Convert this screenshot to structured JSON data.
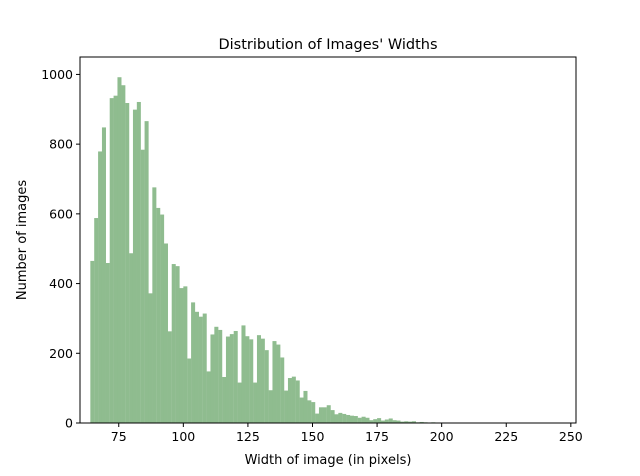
{
  "chart_data": {
    "type": "bar",
    "title": "Distribution of Images' Widths",
    "xlabel": "Width of image (in pixels)",
    "ylabel": "Number of images",
    "xlim": [
      60,
      252
    ],
    "ylim": [
      0,
      1050
    ],
    "xticks": [
      75,
      100,
      125,
      150,
      175,
      200,
      225,
      250
    ],
    "yticks": [
      0,
      200,
      400,
      600,
      800,
      1000
    ],
    "bar_color": "#8fbc8f",
    "grid": false,
    "bins": [
      64,
      65.5,
      67,
      68.5,
      70,
      71.5,
      73,
      74.5,
      76,
      77.5,
      79,
      80.5,
      82,
      83.5,
      85,
      86.5,
      88,
      89.5,
      91,
      92.5,
      94,
      95.5,
      97,
      98.5,
      100,
      101.5,
      103,
      104.5,
      106,
      107.5,
      109,
      110.5,
      112,
      113.5,
      115,
      116.5,
      118,
      119.5,
      121,
      122.5,
      124,
      125.5,
      127,
      128.5,
      130,
      131.5,
      133,
      134.5,
      136,
      137.5,
      139,
      140.5,
      142,
      143.5,
      145,
      146.5,
      148,
      149.5,
      151,
      152.5,
      154,
      155.5,
      157,
      158.5,
      160,
      161.5,
      163,
      164.5,
      166,
      167.5,
      169,
      170.5,
      172,
      173.5,
      175,
      176.5,
      178,
      179.5,
      181,
      182.5,
      184,
      185.5,
      187,
      188.5,
      190,
      191.5,
      193,
      194.5,
      196,
      197.5,
      199,
      200.5,
      202,
      203.5,
      205,
      206.5,
      208,
      209.5,
      211,
      212.5,
      214,
      215.5,
      217,
      218.5,
      220,
      221.5,
      223,
      224.5,
      226,
      227.5,
      229,
      230.5,
      232,
      233.5,
      235,
      236.5,
      238,
      239.5,
      241,
      242.5,
      244,
      245.5
    ],
    "values": [
      465,
      588,
      779,
      848,
      459,
      932,
      939,
      992,
      969,
      918,
      487,
      899,
      921,
      784,
      866,
      372,
      676,
      617,
      598,
      515,
      263,
      456,
      450,
      387,
      392,
      185,
      346,
      319,
      305,
      314,
      148,
      254,
      276,
      267,
      132,
      248,
      255,
      264,
      116,
      280,
      249,
      240,
      116,
      252,
      242,
      209,
      94,
      235,
      225,
      188,
      93,
      129,
      133,
      122,
      73,
      92,
      65,
      60,
      27,
      45,
      45,
      51,
      37,
      25,
      29,
      26,
      23,
      21,
      20,
      15,
      18,
      15,
      8,
      11,
      14,
      7,
      10,
      13,
      8,
      7,
      4,
      5,
      4,
      5,
      2,
      3,
      2,
      1,
      2,
      1,
      1,
      1,
      1,
      1,
      1,
      1,
      1,
      1,
      1,
      1,
      1,
      1,
      1,
      1,
      1,
      1,
      1,
      1,
      1,
      1,
      1,
      1,
      1,
      1,
      1,
      1,
      1,
      1,
      1,
      1,
      1,
      1
    ]
  }
}
